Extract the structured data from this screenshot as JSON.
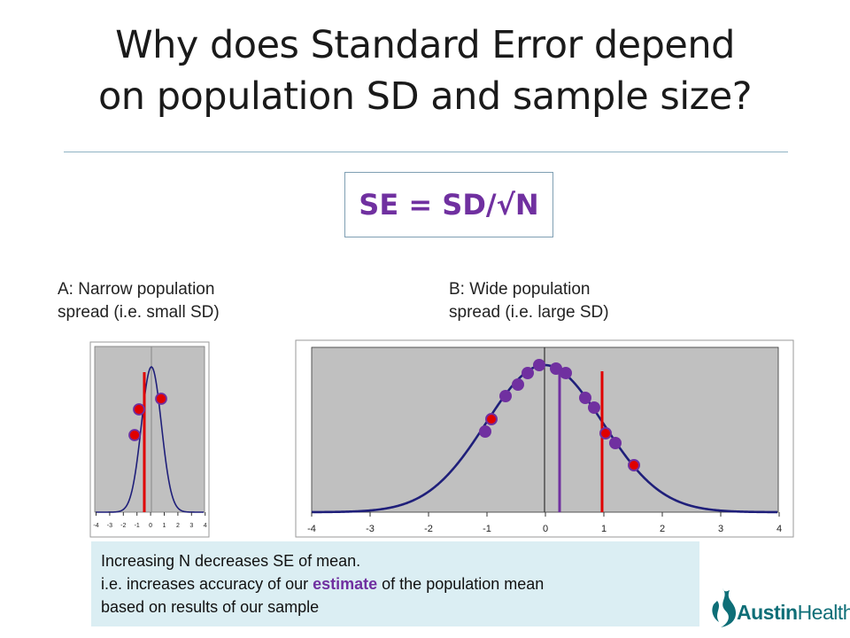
{
  "title_line1": "Why does Standard Error depend",
  "title_line2": "on population SD and sample size?",
  "formula": "SE = SD/√N",
  "panel_a": {
    "caption_line1": "A: Narrow population",
    "caption_line2": "spread (i.e. small SD)",
    "ticks": [
      "-4",
      "-3",
      "-2",
      "-1",
      "0",
      "1",
      "2",
      "3",
      "4"
    ]
  },
  "panel_b": {
    "caption_line1": "B: Wide population",
    "caption_line2": "spread (i.e. large SD)",
    "ticks": [
      "-4",
      "-3",
      "-2",
      "-1",
      "0",
      "1",
      "2",
      "3",
      "4"
    ]
  },
  "note": {
    "line1": "Increasing N decreases SE of mean.",
    "line2_prefix": "i.e. increases accuracy of our ",
    "line2_emphasis": "estimate",
    "line2_suffix": " of the population mean",
    "line3": "based on results of our sample"
  },
  "logo": {
    "name_bold": "Austin",
    "name_thin": "Health"
  },
  "colors": {
    "accent_purple": "#7030a0",
    "sample_red": "#e00000",
    "curve_navy": "#1f1f7a",
    "plot_gray": "#c0c0c0",
    "note_bg": "#dbeef3",
    "logo_teal": "#0e6e77"
  }
}
